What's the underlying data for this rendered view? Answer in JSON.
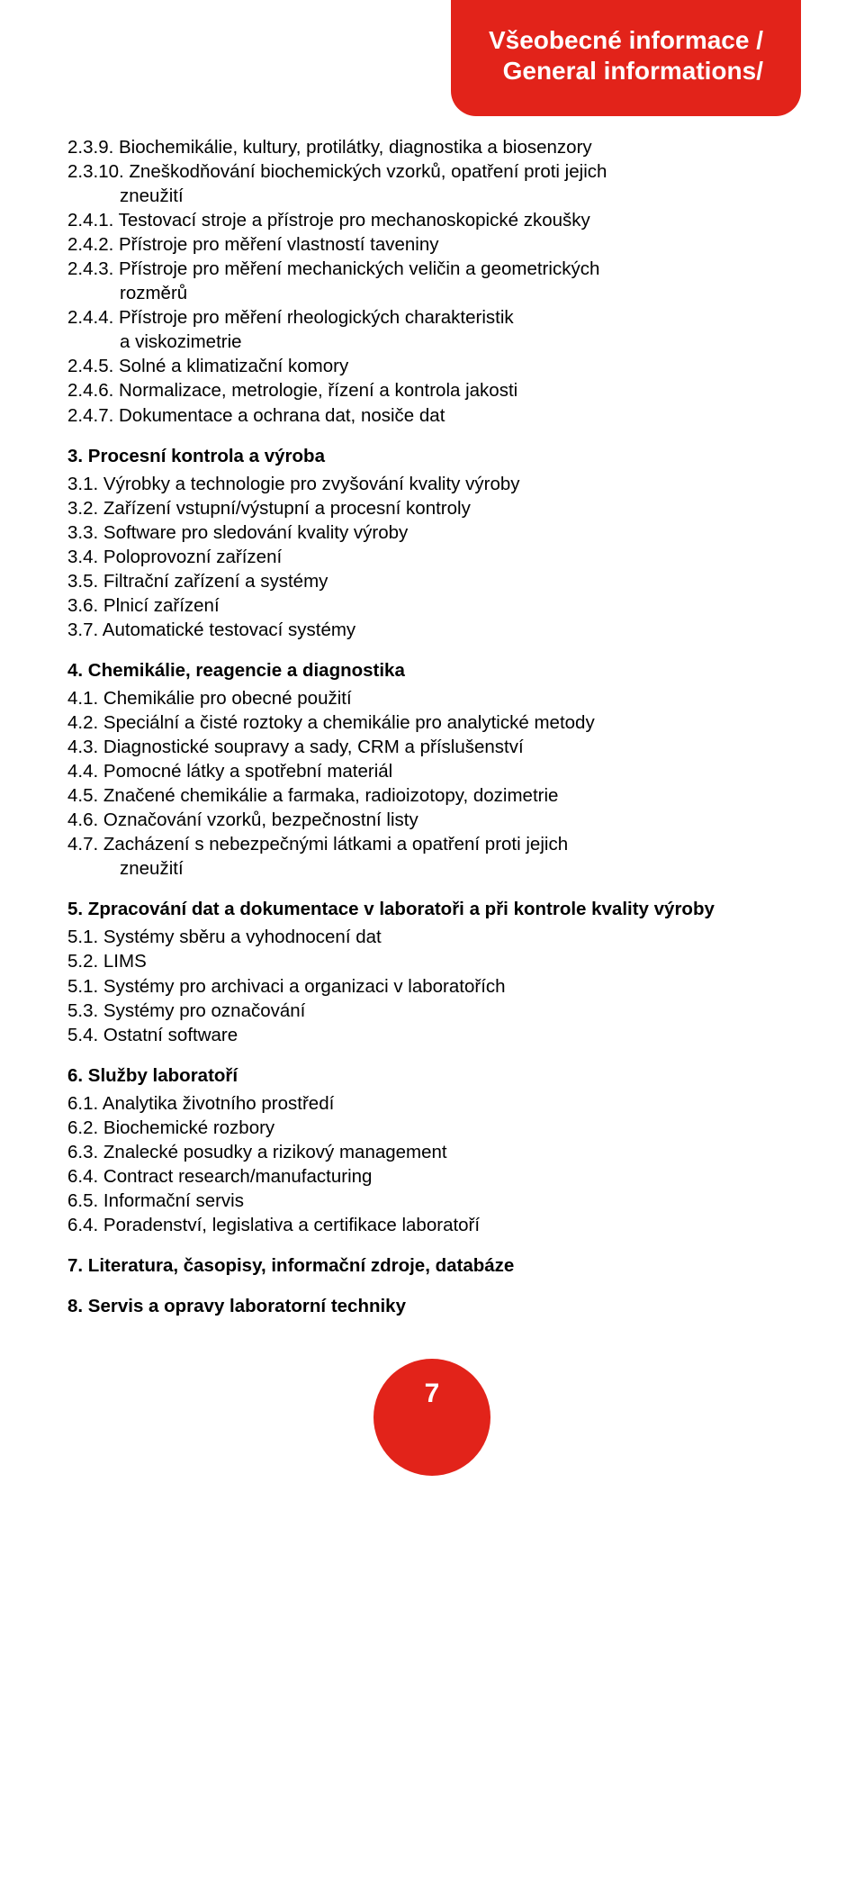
{
  "header": {
    "title_line1": "Všeobecné informace /",
    "title_line2": "General informations/",
    "bg_color": "#e2231a",
    "text_color": "#ffffff"
  },
  "sections": [
    {
      "heading": null,
      "items": [
        {
          "num": "2.3.9.",
          "text": "Biochemikálie, kultury, protilátky, diagnostika a biosenzory"
        },
        {
          "num": "2.3.10.",
          "text": "Zneškodňování biochemických vzorků, opatření proti jejich",
          "cont": "zneužití"
        },
        {
          "num": "2.4.1.",
          "text": "Testovací stroje a přístroje pro mechanoskopické zkoušky"
        },
        {
          "num": "2.4.2.",
          "text": "Přístroje pro měření vlastností taveniny"
        },
        {
          "num": "2.4.3.",
          "text": "Přístroje pro měření mechanických veličin a geometrických",
          "cont": "rozměrů"
        },
        {
          "num": "2.4.4.",
          "text": "Přístroje pro měření rheologických charakteristik",
          "cont": "a viskozimetrie"
        },
        {
          "num": "2.4.5.",
          "text": "Solné a klimatizační komory"
        },
        {
          "num": "2.4.6.",
          "text": "Normalizace, metrologie, řízení a kontrola jakosti"
        },
        {
          "num": "2.4.7.",
          "text": "Dokumentace a ochrana dat, nosiče dat"
        }
      ]
    },
    {
      "heading": "3. Procesní kontrola a výroba",
      "items": [
        {
          "num": "3.1.",
          "text": "Výrobky a technologie pro zvyšování kvality výroby"
        },
        {
          "num": "3.2.",
          "text": "Zařízení vstupní/výstupní a procesní kontroly"
        },
        {
          "num": "3.3.",
          "text": "Software pro sledování kvality výroby"
        },
        {
          "num": "3.4.",
          "text": "Poloprovozní zařízení"
        },
        {
          "num": "3.5.",
          "text": "Filtrační zařízení a systémy"
        },
        {
          "num": "3.6.",
          "text": "Plnicí zařízení"
        },
        {
          "num": "3.7.",
          "text": "Automatické testovací systémy"
        }
      ]
    },
    {
      "heading": "4. Chemikálie, reagencie a diagnostika",
      "items": [
        {
          "num": "4.1.",
          "text": "Chemikálie pro obecné použití"
        },
        {
          "num": "4.2.",
          "text": "Speciální a čisté roztoky a chemikálie pro analytické metody"
        },
        {
          "num": "4.3.",
          "text": "Diagnostické soupravy a sady, CRM a příslušenství"
        },
        {
          "num": "4.4.",
          "text": "Pomocné látky a spotřební materiál"
        },
        {
          "num": "4.5.",
          "text": "Značené chemikálie a farmaka, radioizotopy, dozimetrie"
        },
        {
          "num": "4.6.",
          "text": "Označování vzorků, bezpečnostní listy"
        },
        {
          "num": "4.7.",
          "text": "Zacházení s nebezpečnými látkami a opatření proti jejich",
          "cont": "zneužití"
        }
      ]
    },
    {
      "heading": "5. Zpracování dat a dokumentace v laboratoři a při kontrole kvality výroby",
      "items": [
        {
          "num": "5.1.",
          "text": "Systémy sběru a vyhodnocení dat"
        },
        {
          "num": "5.2.",
          "text": "LIMS"
        },
        {
          "num": "5.1.",
          "text": "Systémy pro archivaci a organizaci v laboratořích"
        },
        {
          "num": "5.3.",
          "text": "Systémy pro označování"
        },
        {
          "num": "5.4.",
          "text": "Ostatní software"
        }
      ]
    },
    {
      "heading": "6. Služby laboratoří",
      "items": [
        {
          "num": "6.1.",
          "text": "Analytika životního prostředí"
        },
        {
          "num": "6.2.",
          "text": "Biochemické rozbory"
        },
        {
          "num": "6.3.",
          "text": "Znalecké posudky a rizikový management"
        },
        {
          "num": "6.4.",
          "text": "Contract research/manufacturing"
        },
        {
          "num": "6.5.",
          "text": "Informační servis"
        },
        {
          "num": "6.4.",
          "text": "Poradenství, legislativa a certifikace laboratoří"
        }
      ]
    },
    {
      "heading": "7. Literatura, časopisy, informační zdroje, databáze",
      "items": []
    },
    {
      "heading": "8. Servis a opravy laboratorní techniky",
      "items": []
    }
  ],
  "footer": {
    "page_number": "7",
    "bg_color": "#e2231a",
    "text_color": "#ffffff"
  }
}
